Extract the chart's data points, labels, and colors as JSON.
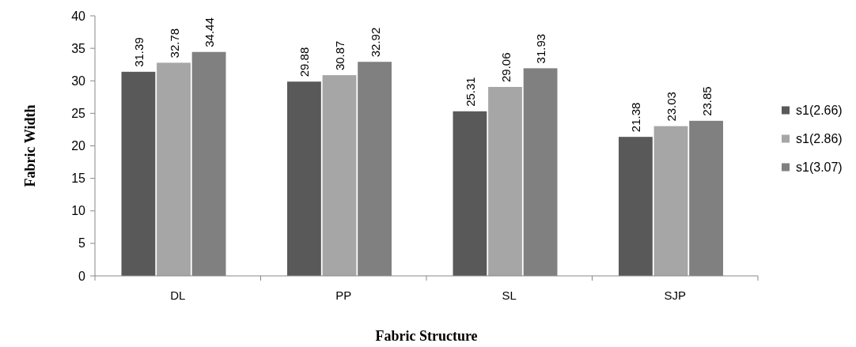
{
  "chart_data": {
    "type": "bar",
    "xlabel": "Fabric Structure",
    "ylabel": "Fabric Width",
    "categories": [
      "DL",
      "PP",
      "SL",
      "SJP"
    ],
    "series": [
      {
        "name": "s1(2.66)",
        "color": "#595959",
        "values": [
          31.39,
          29.88,
          25.31,
          21.38
        ]
      },
      {
        "name": "s1(2.86)",
        "color": "#a6a6a6",
        "values": [
          32.78,
          30.87,
          29.06,
          23.03
        ]
      },
      {
        "name": "s1(3.07)",
        "color": "#808080",
        "values": [
          34.44,
          32.92,
          31.93,
          23.85
        ]
      }
    ],
    "ylim": [
      0,
      40
    ],
    "yticks": [
      0,
      5,
      10,
      15,
      20,
      25,
      30,
      35,
      40
    ],
    "data_labels": true,
    "legend": "right",
    "grid": false
  }
}
